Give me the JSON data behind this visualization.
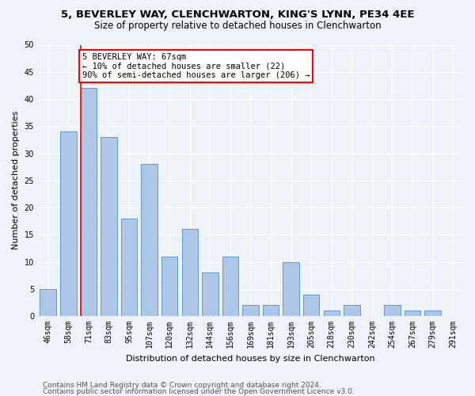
{
  "title_line1": "5, BEVERLEY WAY, CLENCHWARTON, KING'S LYNN, PE34 4EE",
  "title_line2": "Size of property relative to detached houses in Clenchwarton",
  "xlabel": "Distribution of detached houses by size in Clenchwarton",
  "ylabel": "Number of detached properties",
  "categories": [
    "46sqm",
    "58sqm",
    "71sqm",
    "83sqm",
    "95sqm",
    "107sqm",
    "120sqm",
    "132sqm",
    "144sqm",
    "156sqm",
    "169sqm",
    "181sqm",
    "193sqm",
    "205sqm",
    "218sqm",
    "230sqm",
    "242sqm",
    "254sqm",
    "267sqm",
    "279sqm",
    "291sqm"
  ],
  "values": [
    5,
    34,
    42,
    33,
    18,
    28,
    11,
    16,
    8,
    11,
    2,
    2,
    10,
    4,
    1,
    2,
    0,
    2,
    1,
    1,
    0
  ],
  "bar_color": "#aec6e8",
  "bar_edge_color": "#5b9bd5",
  "annotation_text_line1": "5 BEVERLEY WAY: 67sqm",
  "annotation_text_line2": "← 10% of detached houses are smaller (22)",
  "annotation_text_line3": "90% of semi-detached houses are larger (206) →",
  "annotation_box_color": "white",
  "annotation_box_edge_color": "red",
  "vline_color": "red",
  "vline_x_index": 2,
  "ylim": [
    0,
    50
  ],
  "yticks": [
    0,
    5,
    10,
    15,
    20,
    25,
    30,
    35,
    40,
    45,
    50
  ],
  "footer_line1": "Contains HM Land Registry data © Crown copyright and database right 2024.",
  "footer_line2": "Contains public sector information licensed under the Open Government Licence v3.0.",
  "bg_color": "#eef2f9",
  "grid_color": "#ffffff",
  "title_fontsize": 9.5,
  "subtitle_fontsize": 8.5,
  "axis_label_fontsize": 8,
  "tick_fontsize": 7,
  "annotation_fontsize": 7.5,
  "footer_fontsize": 6.5
}
